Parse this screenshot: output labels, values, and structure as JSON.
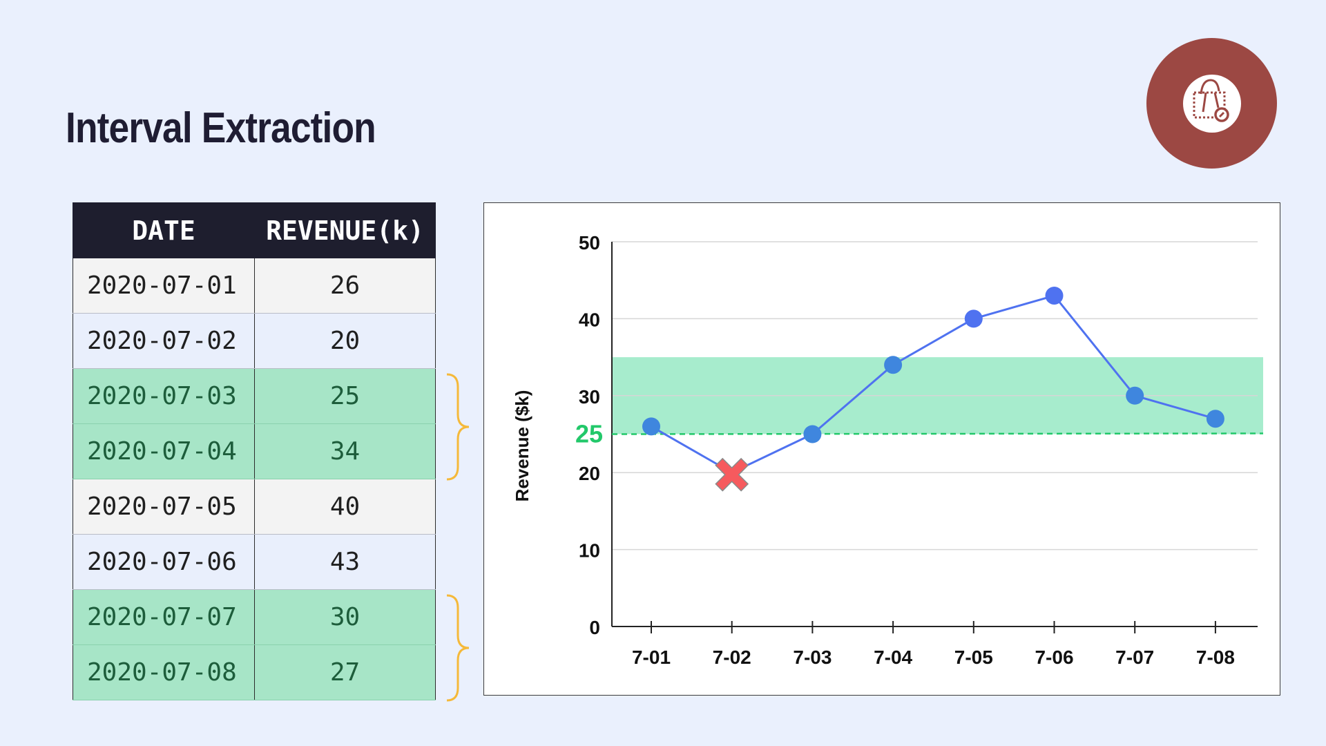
{
  "page": {
    "title": "Interval Extraction"
  },
  "logo": {
    "icon": "shopping-bag-dashed-icon",
    "color": "#9c4843"
  },
  "table": {
    "headers": [
      "DATE",
      "REVENUE(k)"
    ],
    "rows": [
      {
        "date": "2020-07-01",
        "revenue": "26",
        "highlighted": false
      },
      {
        "date": "2020-07-02",
        "revenue": "20",
        "highlighted": false
      },
      {
        "date": "2020-07-03",
        "revenue": "25",
        "highlighted": true
      },
      {
        "date": "2020-07-04",
        "revenue": "34",
        "highlighted": true
      },
      {
        "date": "2020-07-05",
        "revenue": "40",
        "highlighted": false
      },
      {
        "date": "2020-07-06",
        "revenue": "43",
        "highlighted": false
      },
      {
        "date": "2020-07-07",
        "revenue": "30",
        "highlighted": true
      },
      {
        "date": "2020-07-08",
        "revenue": "27",
        "highlighted": true
      }
    ],
    "highlight_color": "#a7e5c7",
    "brace_color": "#f5b93a"
  },
  "chart_data": {
    "type": "line",
    "categories": [
      "7-01",
      "7-02",
      "7-03",
      "7-04",
      "7-05",
      "7-06",
      "7-07",
      "7-08"
    ],
    "series": [
      {
        "values": [
          26,
          20,
          25,
          34,
          40,
          43,
          30,
          27
        ],
        "color": "#4f72f0"
      }
    ],
    "excluded_points": [
      {
        "category": "7-02",
        "value": 20,
        "marker": "red-x-icon",
        "color": "#f65a5e"
      }
    ],
    "threshold": {
      "value": 25,
      "label": "25",
      "color": "#22c86a",
      "style": "dashed"
    },
    "band": {
      "from": 25,
      "to": 35,
      "color": "#a7eccd"
    },
    "ylabel": "Revenue ($k)",
    "xlabel": "",
    "title": "",
    "ylim": [
      0,
      50
    ],
    "yticks": [
      0,
      10,
      20,
      30,
      40,
      50
    ],
    "grid": true,
    "legend": "none"
  }
}
